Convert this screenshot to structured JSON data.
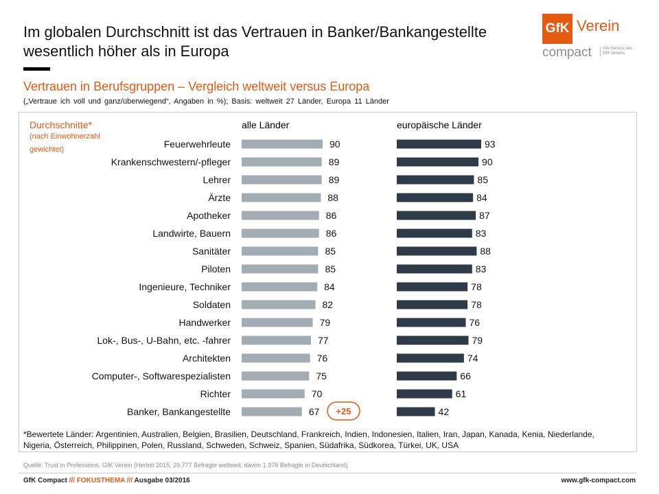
{
  "header": {
    "title_line1": "Im globalen Durchschnitt ist das Vertrauen in Banker/Bankangestellte",
    "title_line2": "wesentlich höher als in Europa"
  },
  "logo": {
    "mark": "GfK",
    "verein": "Verein",
    "compact": "compact",
    "note": "Info Service des\nGfK Vereins"
  },
  "subtitle": "Vertrauen in Berufsgruppen – Vergleich weltweit versus Europa",
  "note": "(„Vertraue ich voll und ganz/überwiegend“, Angaben in %); Basis: weltweit 27 Länder, Europa 11 Länder",
  "legend": {
    "main": "Durchschnitte*",
    "sub": "(nach Einwohnerzahl gewichtet)"
  },
  "chart_data": {
    "type": "bar",
    "orientation": "horizontal",
    "categories": [
      "Feuerwehrleute",
      "Krankenschwestern/-pfleger",
      "Lehrer",
      "Ärzte",
      "Apotheker",
      "Landwirte, Bauern",
      "Sanitäter",
      "Piloten",
      "Ingenieure, Techniker",
      "Soldaten",
      "Handwerker",
      "Lok-, Bus-, U-Bahn, etc. -fahrer",
      "Architekten",
      "Computer-, Softwarespezialisten",
      "Richter",
      "Banker, Bankangestellte"
    ],
    "series": [
      {
        "name": "alle Länder",
        "color": "#a3abb3",
        "values": [
          90,
          89,
          89,
          88,
          86,
          86,
          85,
          85,
          84,
          82,
          79,
          77,
          76,
          75,
          70,
          67
        ]
      },
      {
        "name": "europäische Länder",
        "color": "#2f3b48",
        "values": [
          93,
          90,
          85,
          84,
          87,
          83,
          88,
          83,
          78,
          78,
          76,
          79,
          74,
          66,
          61,
          42
        ]
      }
    ],
    "annotation": {
      "category": "Banker, Bankangestellte",
      "text": "+25",
      "color": "#e55a13"
    }
  },
  "footnote": "*Bewertete Länder: Argentinien, Australien, Belgien, Brasilien, Deutschland, Frankreich, Indien, Indonesien, Italien, Iran, Japan, Kanada, Kenia, Niederlande, Nigeria, Österreich, Philippinen, Polen, Russland, Schweden, Schweiz, Spanien, Südafrika, Südkorea, Türkei, UK, USA",
  "source": "Quelle: Trust in Professions, GfK Verein (Herbst 2015, 29.777 Befragte weltweit, davon 1.978 Befragte in Deutschland)",
  "footer": {
    "brand": "GfK Compact",
    "sep1": "///",
    "topic": "FOKUSTHEMA",
    "sep2": "///",
    "issue": "Ausgabe 03/2016",
    "url": "www.gfk-compact.com"
  }
}
